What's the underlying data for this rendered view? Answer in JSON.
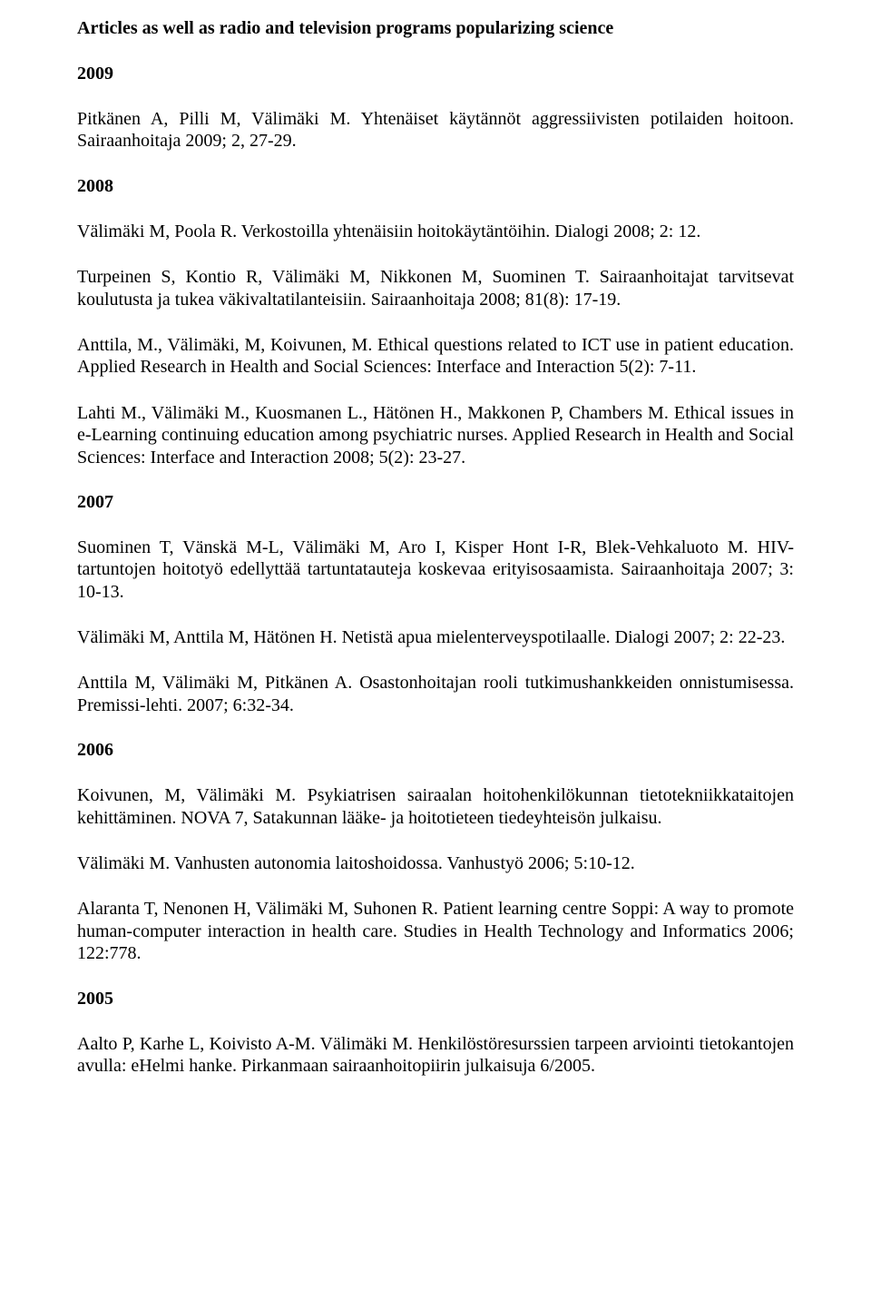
{
  "title": "Articles as well as radio and television programs popularizing science",
  "sections": [
    {
      "year": "2009",
      "paras": [
        "Pitkänen A, Pilli M, Välimäki M. Yhtenäiset käytännöt aggressiivisten potilaiden hoitoon. Sairaanhoitaja 2009; 2, 27-29."
      ]
    },
    {
      "year": "2008",
      "paras": [
        "Välimäki M, Poola R. Verkostoilla yhtenäisiin hoitokäytäntöihin. Dialogi 2008; 2: 12.",
        "Turpeinen S, Kontio R, Välimäki M, Nikkonen M, Suominen T. Sairaanhoitajat tarvitsevat koulutusta ja tukea väkivaltatilanteisiin. Sairaanhoitaja 2008; 81(8): 17-19.",
        "Anttila, M., Välimäki, M, Koivunen, M. Ethical questions related to ICT use in patient education. Applied Research in Health and Social Sciences: Interface and Interaction 5(2): 7-11.",
        "Lahti M., Välimäki M., Kuosmanen L., Hätönen H., Makkonen P, Chambers M. Ethical issues in e-Learning continuing education among psychiatric nurses. Applied Research in Health and Social Sciences: Interface and Interaction 2008; 5(2): 23-27."
      ]
    },
    {
      "year": "2007",
      "paras": [
        "Suominen T, Vänskä M-L, Välimäki M, Aro I, Kisper Hont I-R, Blek-Vehkaluoto M. HIV-tartuntojen hoitotyö edellyttää tartuntatauteja koskevaa erityisosaamista. Sairaanhoitaja 2007; 3: 10-13.",
        "Välimäki M, Anttila M, Hätönen H. Netistä apua mielenterveyspotilaalle. Dialogi 2007; 2: 22-23.",
        "Anttila M, Välimäki M, Pitkänen A. Osastonhoitajan rooli tutkimushankkeiden onnistumisessa. Premissi-lehti. 2007; 6:32-34."
      ]
    },
    {
      "year": "2006",
      "paras": [
        "Koivunen, M, Välimäki M. Psykiatrisen sairaalan hoitohenkilökunnan tietotekniikkataitojen kehittäminen. NOVA 7, Satakunnan lääke- ja hoitotieteen tiedeyhteisön julkaisu.",
        "Välimäki M. Vanhusten autonomia laitoshoidossa. Vanhustyö 2006; 5:10-12.",
        "Alaranta T, Nenonen H, Välimäki M, Suhonen R. Patient learning centre Soppi: A way to promote human-computer interaction in health care. Studies in Health Technology and Informatics 2006; 122:778."
      ]
    },
    {
      "year": "2005",
      "paras": [
        "Aalto P, Karhe L, Koivisto A-M. Välimäki M. Henkilöstöresurssien tarpeen arviointi tietokantojen avulla: eHelmi hanke. Pirkanmaan sairaanhoitopiirin julkaisuja 6/2005."
      ]
    }
  ]
}
